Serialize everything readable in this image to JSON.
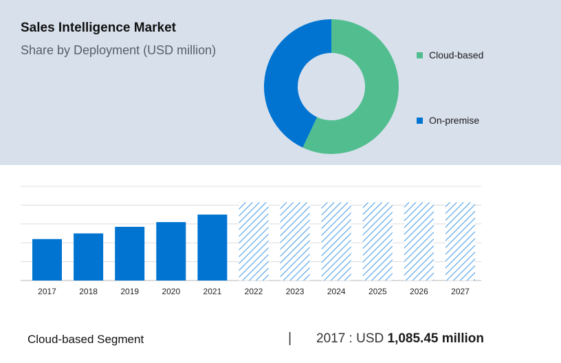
{
  "title": "Sales Intelligence Market",
  "subtitle": "Share by Deployment (USD million)",
  "colors": {
    "cloud": "#52be8f",
    "onprem": "#0074d0",
    "bar": "#0074d0",
    "forecast_hatch": "#4d9ee6",
    "grid": "#dcdcdc",
    "panel": "#d8e0ec"
  },
  "chart_data": [
    {
      "type": "pie",
      "title": "Sales Intelligence Market",
      "subtitle": "Share by Deployment (USD million)",
      "donut": true,
      "labels": [
        "Cloud-based",
        "On-premise"
      ],
      "values": [
        57,
        43
      ],
      "legend_position": "right"
    },
    {
      "type": "bar",
      "categories": [
        "2017",
        "2018",
        "2019",
        "2020",
        "2021",
        "2022",
        "2023",
        "2024",
        "2025",
        "2026",
        "2027"
      ],
      "values": [
        22,
        25,
        28.5,
        31,
        35,
        41.5,
        41.5,
        41.5,
        41.5,
        41.5,
        41.5
      ],
      "forecast_from": "2022",
      "ylim": [
        0,
        50
      ],
      "grid": true
    }
  ],
  "footer": {
    "segment": "Cloud-based Segment",
    "divider": "|",
    "year_label": "2017 : USD ",
    "value": "1,085.45 million"
  }
}
